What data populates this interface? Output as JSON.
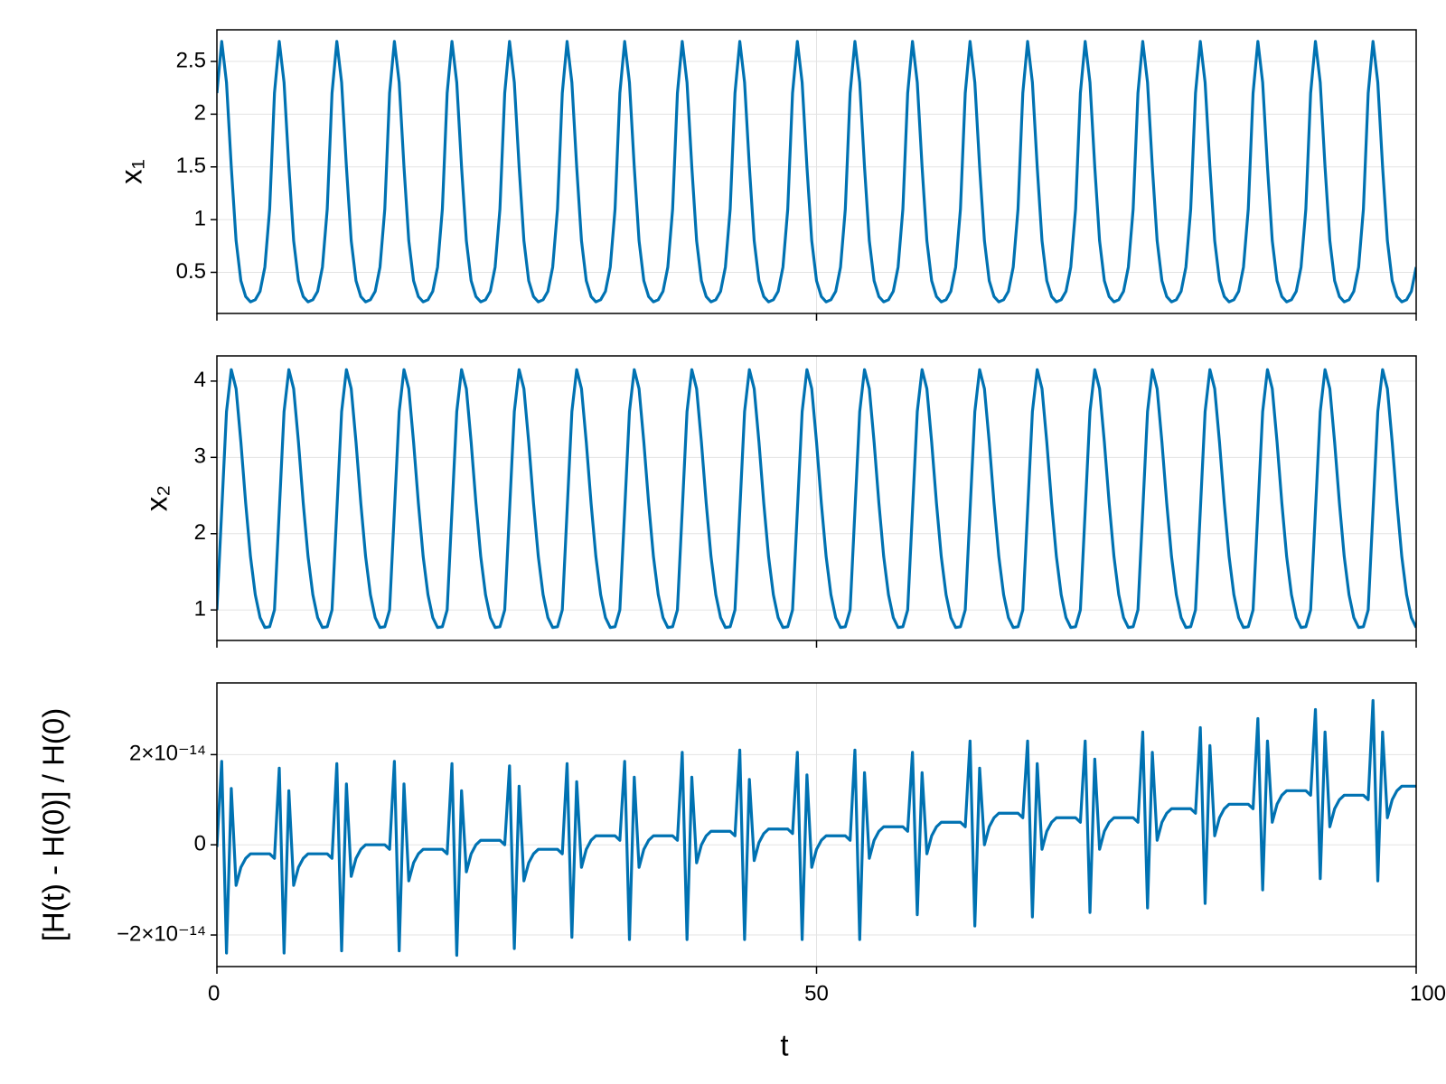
{
  "chart_data": {
    "type": "line",
    "xlabel": "t",
    "xlim": [
      0,
      100
    ],
    "xticks": [
      0,
      50,
      100
    ],
    "grid": true,
    "x": [
      0,
      0.4,
      0.8,
      1.2,
      1.6,
      2,
      2.4,
      2.8,
      3.2,
      3.6,
      4,
      4.4,
      4.8,
      5.2,
      5.6,
      6,
      6.4,
      6.8,
      7.2,
      7.6,
      8,
      8.4,
      8.8,
      9.2,
      9.6,
      10,
      10.4,
      10.8,
      11.2,
      11.6,
      12,
      12.4,
      12.8,
      13.2,
      13.6,
      14,
      14.4,
      14.8,
      15.2,
      15.6,
      16,
      16.4,
      16.8,
      17.2,
      17.6,
      18,
      18.4,
      18.8,
      19.2,
      19.6,
      20,
      20.4,
      20.8,
      21.2,
      21.6,
      22,
      22.4,
      22.8,
      23.2,
      23.6,
      24,
      24.4,
      24.8,
      25.2,
      25.6,
      26,
      26.4,
      26.8,
      27.2,
      27.6,
      28,
      28.4,
      28.8,
      29.2,
      29.6,
      30,
      30.4,
      30.8,
      31.2,
      31.6,
      32,
      32.4,
      32.8,
      33.2,
      33.6,
      34,
      34.4,
      34.8,
      35.2,
      35.6,
      36,
      36.4,
      36.8,
      37.2,
      37.6,
      38,
      38.4,
      38.8,
      39.2,
      39.6,
      40,
      40.4,
      40.8,
      41.2,
      41.6,
      42,
      42.4,
      42.8,
      43.2,
      43.6,
      44,
      44.4,
      44.8,
      45.2,
      45.6,
      46,
      46.4,
      46.8,
      47.2,
      47.6,
      48,
      48.4,
      48.8,
      49.2,
      49.6,
      50,
      50.4,
      50.8,
      51.2,
      51.6,
      52,
      52.4,
      52.8,
      53.2,
      53.6,
      54,
      54.4,
      54.8,
      55.2,
      55.6,
      56,
      56.4,
      56.8,
      57.2,
      57.6,
      58,
      58.4,
      58.8,
      59.2,
      59.6,
      60,
      60.4,
      60.8,
      61.2,
      61.6,
      62,
      62.4,
      62.8,
      63.2,
      63.6,
      64,
      64.4,
      64.8,
      65.2,
      65.6,
      66,
      66.4,
      66.8,
      67.2,
      67.6,
      68,
      68.4,
      68.8,
      69.2,
      69.6,
      70,
      70.4,
      70.8,
      71.2,
      71.6,
      72,
      72.4,
      72.8,
      73.2,
      73.6,
      74,
      74.4,
      74.8,
      75.2,
      75.6,
      76,
      76.4,
      76.8,
      77.2,
      77.6,
      78,
      78.4,
      78.8,
      79.2,
      79.6,
      80,
      80.4,
      80.8,
      81.2,
      81.6,
      82,
      82.4,
      82.8,
      83.2,
      83.6,
      84,
      84.4,
      84.8,
      85.2,
      85.6,
      86,
      86.4,
      86.8,
      87.2,
      87.6,
      88,
      88.4,
      88.8,
      89.2,
      89.6,
      90,
      90.4,
      90.8,
      91.2,
      91.6,
      92,
      92.4,
      92.8,
      93.2,
      93.6,
      94,
      94.4,
      94.8,
      95.2,
      95.6,
      96,
      96.4,
      96.8,
      97.2,
      97.6,
      98,
      98.4,
      98.8,
      99.2,
      99.6,
      100
    ],
    "panels": [
      {
        "ylabel": "x₁",
        "ylim": [
          0.11,
          2.8
        ],
        "yticks": [
          0.5,
          1.0,
          1.5,
          2.0,
          2.5
        ],
        "color": "#0072b2",
        "values": [
          2.2,
          2.69,
          2.3,
          1.5,
          0.8,
          0.42,
          0.27,
          0.22,
          0.24,
          0.32,
          0.55,
          1.1,
          2.2,
          2.69,
          2.3,
          1.5,
          0.8,
          0.42,
          0.27,
          0.22,
          0.24,
          0.32,
          0.55,
          1.1,
          2.2,
          2.69,
          2.3,
          1.5,
          0.8,
          0.42,
          0.27,
          0.22,
          0.24,
          0.32,
          0.55,
          1.1,
          2.2,
          2.69,
          2.3,
          1.5,
          0.8,
          0.42,
          0.27,
          0.22,
          0.24,
          0.32,
          0.55,
          1.1,
          2.2,
          2.69,
          2.3,
          1.5,
          0.8,
          0.42,
          0.27,
          0.22,
          0.24,
          0.32,
          0.55,
          1.1,
          2.2,
          2.69,
          2.3,
          1.5,
          0.8,
          0.42,
          0.27,
          0.22,
          0.24,
          0.32,
          0.55,
          1.1,
          2.2,
          2.69,
          2.3,
          1.5,
          0.8,
          0.42,
          0.27,
          0.22,
          0.24,
          0.32,
          0.55,
          1.1,
          2.2,
          2.69,
          2.3,
          1.5,
          0.8,
          0.42,
          0.27,
          0.22,
          0.24,
          0.32,
          0.55,
          1.1,
          2.2,
          2.69,
          2.3,
          1.5,
          0.8,
          0.42,
          0.27,
          0.22,
          0.24,
          0.32,
          0.55,
          1.1,
          2.2,
          2.69,
          2.3,
          1.5,
          0.8,
          0.42,
          0.27,
          0.22,
          0.24,
          0.32,
          0.55,
          1.1,
          2.2,
          2.69,
          2.3,
          1.5,
          0.8,
          0.42,
          0.27,
          0.22,
          0.24,
          0.32,
          0.55,
          1.1,
          2.2,
          2.69,
          2.3,
          1.5,
          0.8,
          0.42,
          0.27,
          0.22,
          0.24,
          0.32,
          0.55,
          1.1,
          2.2,
          2.69,
          2.3,
          1.5,
          0.8,
          0.42,
          0.27,
          0.22,
          0.24,
          0.32,
          0.55,
          1.1,
          2.2,
          2.69,
          2.3,
          1.5,
          0.8,
          0.42,
          0.27,
          0.22,
          0.24,
          0.32,
          0.55,
          1.1,
          2.2,
          2.69,
          2.3,
          1.5,
          0.8,
          0.42,
          0.27,
          0.22,
          0.24,
          0.32,
          0.55,
          1.1,
          2.2,
          2.69,
          2.3,
          1.5,
          0.8,
          0.42,
          0.27,
          0.22,
          0.24,
          0.32,
          0.55,
          1.1,
          2.2,
          2.69,
          2.3,
          1.5,
          0.8,
          0.42,
          0.27,
          0.22,
          0.24,
          0.32,
          0.55,
          1.1,
          2.2,
          2.69,
          2.3,
          1.5,
          0.8,
          0.42,
          0.27,
          0.22,
          0.24,
          0.32,
          0.55,
          1.1,
          2.2,
          2.69,
          2.3,
          1.5,
          0.8,
          0.42,
          0.27,
          0.22,
          0.24,
          0.32,
          0.55,
          1.1,
          2.2,
          2.69,
          2.3,
          1.5,
          0.8,
          0.42,
          0.27,
          0.22,
          0.24,
          0.32,
          0.55,
          1.1,
          2.2,
          2.69,
          2.3,
          1.5,
          0.8,
          0.42,
          0.27,
          0.22,
          0.24,
          0.32,
          0.55
        ]
      },
      {
        "ylabel": "x₂",
        "ylim": [
          0.6,
          4.33
        ],
        "yticks": [
          1,
          2,
          3,
          4
        ],
        "color": "#0072b2",
        "values": [
          1.0,
          2.3,
          3.6,
          4.15,
          3.9,
          3.2,
          2.4,
          1.7,
          1.2,
          0.9,
          0.77,
          0.78,
          1.0,
          2.3,
          3.6,
          4.15,
          3.9,
          3.2,
          2.4,
          1.7,
          1.2,
          0.9,
          0.77,
          0.78,
          1.0,
          2.3,
          3.6,
          4.15,
          3.9,
          3.2,
          2.4,
          1.7,
          1.2,
          0.9,
          0.77,
          0.78,
          1.0,
          2.3,
          3.6,
          4.15,
          3.9,
          3.2,
          2.4,
          1.7,
          1.2,
          0.9,
          0.77,
          0.78,
          1.0,
          2.3,
          3.6,
          4.15,
          3.9,
          3.2,
          2.4,
          1.7,
          1.2,
          0.9,
          0.77,
          0.78,
          1.0,
          2.3,
          3.6,
          4.15,
          3.9,
          3.2,
          2.4,
          1.7,
          1.2,
          0.9,
          0.77,
          0.78,
          1.0,
          2.3,
          3.6,
          4.15,
          3.9,
          3.2,
          2.4,
          1.7,
          1.2,
          0.9,
          0.77,
          0.78,
          1.0,
          2.3,
          3.6,
          4.15,
          3.9,
          3.2,
          2.4,
          1.7,
          1.2,
          0.9,
          0.77,
          0.78,
          1.0,
          2.3,
          3.6,
          4.15,
          3.9,
          3.2,
          2.4,
          1.7,
          1.2,
          0.9,
          0.77,
          0.78,
          1.0,
          2.3,
          3.6,
          4.15,
          3.9,
          3.2,
          2.4,
          1.7,
          1.2,
          0.9,
          0.77,
          0.78,
          1.0,
          2.3,
          3.6,
          4.15,
          3.9,
          3.2,
          2.4,
          1.7,
          1.2,
          0.9,
          0.77,
          0.78,
          1.0,
          2.3,
          3.6,
          4.15,
          3.9,
          3.2,
          2.4,
          1.7,
          1.2,
          0.9,
          0.77,
          0.78,
          1.0,
          2.3,
          3.6,
          4.15,
          3.9,
          3.2,
          2.4,
          1.7,
          1.2,
          0.9,
          0.77,
          0.78,
          1.0,
          2.3,
          3.6,
          4.15,
          3.9,
          3.2,
          2.4,
          1.7,
          1.2,
          0.9,
          0.77,
          0.78,
          1.0,
          2.3,
          3.6,
          4.15,
          3.9,
          3.2,
          2.4,
          1.7,
          1.2,
          0.9,
          0.77,
          0.78,
          1.0,
          2.3,
          3.6,
          4.15,
          3.9,
          3.2,
          2.4,
          1.7,
          1.2,
          0.9,
          0.77,
          0.78,
          1.0,
          2.3,
          3.6,
          4.15,
          3.9,
          3.2,
          2.4,
          1.7,
          1.2,
          0.9,
          0.77,
          0.78,
          1.0,
          2.3,
          3.6,
          4.15,
          3.9,
          3.2,
          2.4,
          1.7,
          1.2,
          0.9,
          0.77,
          0.78,
          1.0,
          2.3,
          3.6,
          4.15,
          3.9,
          3.2,
          2.4,
          1.7,
          1.2,
          0.9,
          0.77,
          0.78,
          1.0,
          2.3,
          3.6,
          4.15,
          3.9,
          3.2,
          2.4,
          1.7,
          1.2,
          0.9,
          0.77,
          0.78,
          1.0,
          2.3,
          3.6,
          4.15,
          3.9,
          3.2,
          2.4,
          1.7,
          1.2,
          0.9,
          0.77
        ]
      },
      {
        "ylabel": "[H(t) - H(0)] / H(0)",
        "ylim": [
          -2.7e-14,
          3.59e-14
        ],
        "yticks": [
          {
            "value": -2e-14,
            "label": "−2×10⁻¹⁴"
          },
          0,
          {
            "value": 2e-14,
            "label": "2×10⁻¹⁴"
          }
        ],
        "color": "#0072b2",
        "values": [
          -5e-16,
          1.85e-14,
          -2.4e-14,
          1.25e-14,
          -9e-15,
          -5e-15,
          -3e-15,
          -2e-15,
          -2e-15,
          -2e-15,
          -2e-15,
          -2e-15,
          -3e-15,
          1.7e-14,
          -2.4e-14,
          1.2e-14,
          -9e-15,
          -5e-15,
          -3e-15,
          -2e-15,
          -2e-15,
          -2e-15,
          -2e-15,
          -2e-15,
          -3e-15,
          1.8e-14,
          -2.35e-14,
          1.35e-14,
          -7e-15,
          -3e-15,
          -1e-15,
          0,
          0,
          0,
          0,
          0,
          -1e-15,
          1.85e-14,
          -2.35e-14,
          1.35e-14,
          -8e-15,
          -4e-15,
          -2e-15,
          -1e-15,
          -1e-15,
          -1e-15,
          -1e-15,
          -1e-15,
          -2e-15,
          1.8e-14,
          -2.45e-14,
          1.2e-14,
          -6e-15,
          -2e-15,
          0,
          1e-15,
          1e-15,
          1e-15,
          1e-15,
          1e-15,
          0,
          1.75e-14,
          -2.3e-14,
          1.3e-14,
          -8e-15,
          -4e-15,
          -2e-15,
          -1e-15,
          -1e-15,
          -1e-15,
          -1e-15,
          -1e-15,
          -2e-15,
          1.8e-14,
          -2.05e-14,
          1.4e-14,
          -5e-15,
          -1e-15,
          1e-15,
          2e-15,
          2e-15,
          2e-15,
          2e-15,
          2e-15,
          1e-15,
          1.85e-14,
          -2.1e-14,
          1.5e-14,
          -5e-15,
          -1e-15,
          1e-15,
          2e-15,
          2e-15,
          2e-15,
          2e-15,
          2e-15,
          1e-15,
          2.05e-14,
          -2.1e-14,
          1.5e-14,
          -4e-15,
          0,
          2e-15,
          3e-15,
          3e-15,
          3e-15,
          3e-15,
          3e-15,
          2e-15,
          2.1e-14,
          -2.1e-14,
          1.45e-14,
          -3.5e-15,
          5e-16,
          2.5e-15,
          3.5e-15,
          3.5e-15,
          3.5e-15,
          3.5e-15,
          3.5e-15,
          2.5e-15,
          2.05e-14,
          -2.1e-14,
          1.55e-14,
          -5e-15,
          -1e-15,
          1e-15,
          2e-15,
          2e-15,
          2e-15,
          2e-15,
          2e-15,
          1e-15,
          2.1e-14,
          -2.1e-14,
          1.6e-14,
          -3e-15,
          1e-15,
          3e-15,
          4e-15,
          4e-15,
          4e-15,
          4e-15,
          4e-15,
          3e-15,
          2.05e-14,
          -1.55e-14,
          1.6e-14,
          -2e-15,
          2e-15,
          4e-15,
          5e-15,
          5e-15,
          5e-15,
          5e-15,
          5e-15,
          4e-15,
          2.3e-14,
          -1.8e-14,
          1.7e-14,
          0,
          4e-15,
          6e-15,
          7e-15,
          7e-15,
          7e-15,
          7e-15,
          7e-15,
          6e-15,
          2.3e-14,
          -1.6e-14,
          1.8e-14,
          -1e-15,
          3e-15,
          5e-15,
          6e-15,
          6e-15,
          6e-15,
          6e-15,
          6e-15,
          5e-15,
          2.3e-14,
          -1.5e-14,
          1.9e-14,
          -1e-15,
          3e-15,
          5e-15,
          6e-15,
          6e-15,
          6e-15,
          6e-15,
          6e-15,
          5e-15,
          2.5e-14,
          -1.4e-14,
          2.05e-14,
          1e-15,
          5e-15,
          7e-15,
          8e-15,
          8e-15,
          8e-15,
          8e-15,
          8e-15,
          7e-15,
          2.6e-14,
          -1.3e-14,
          2.2e-14,
          2e-15,
          6e-15,
          8e-15,
          9e-15,
          9e-15,
          9e-15,
          9e-15,
          9e-15,
          8e-15,
          2.8e-14,
          -1e-14,
          2.3e-14,
          5e-15,
          9e-15,
          1.1e-14,
          1.2e-14,
          1.2e-14,
          1.2e-14,
          1.2e-14,
          1.2e-14,
          1.1e-14,
          3e-14,
          -7.5e-15,
          2.5e-14,
          4e-15,
          8e-15,
          1e-14,
          1.1e-14,
          1.1e-14,
          1.1e-14,
          1.1e-14,
          1.1e-14,
          1e-14,
          3.2e-14,
          -8e-15,
          2.5e-14,
          6e-15,
          1e-14,
          1.2e-14,
          1.3e-14,
          1.3e-14,
          1.3e-14,
          1.3e-14
        ]
      }
    ]
  }
}
